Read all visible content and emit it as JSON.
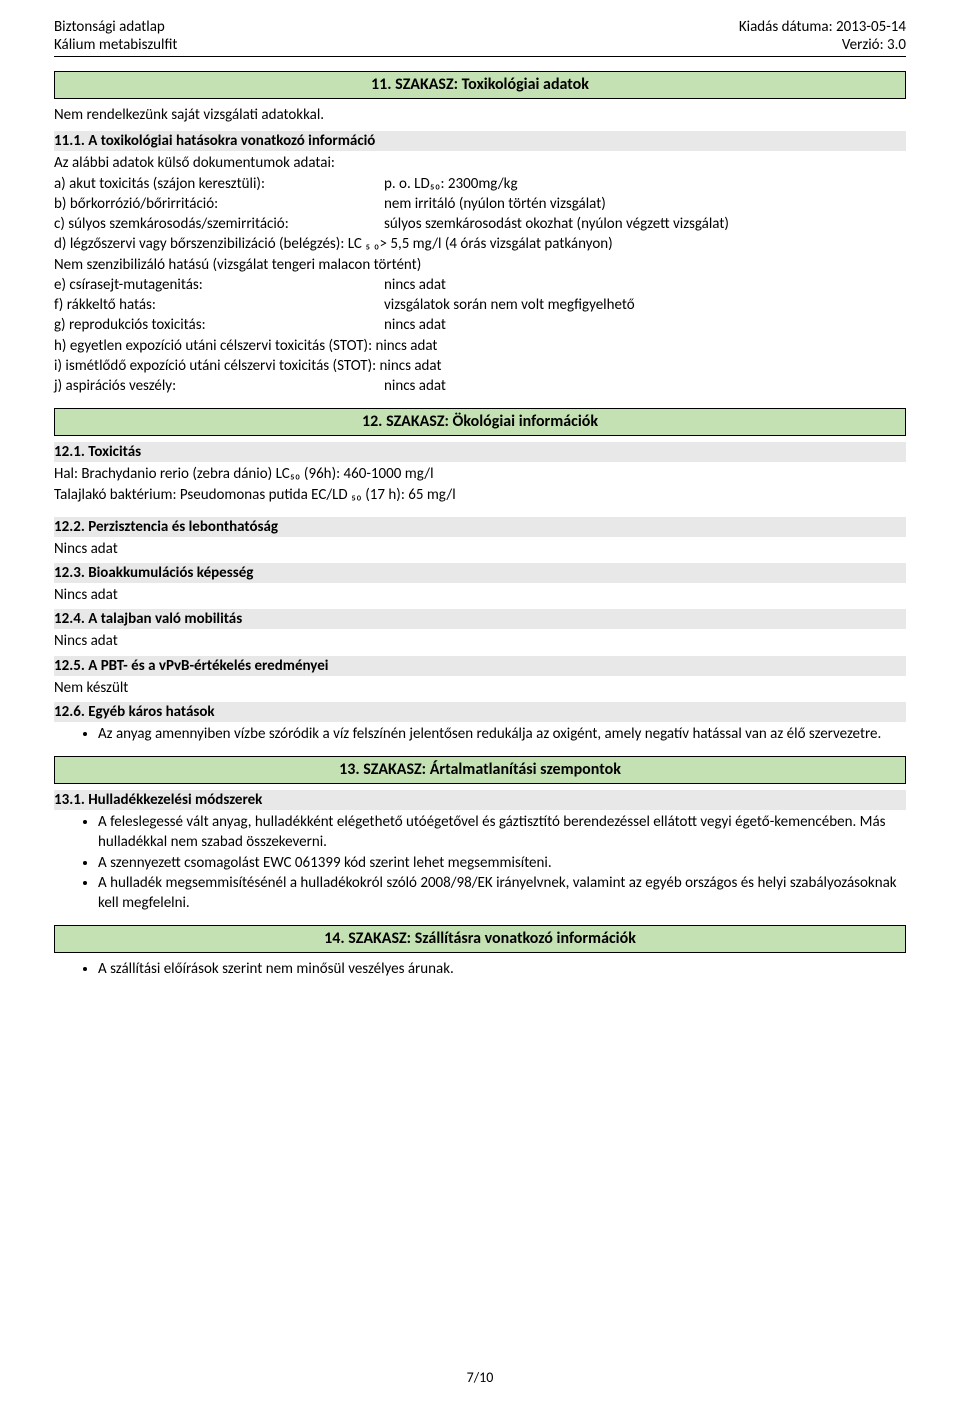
{
  "header": {
    "left1": "Biztonsági adatlap",
    "left2": "Kálium metabiszulfit",
    "right1": "Kiadás dátuma: 2013-05-14",
    "right2": "Verzió: 3.0"
  },
  "section11": {
    "title": "11. SZAKASZ: Toxikológiai adatok",
    "intro": "Nem rendelkezünk saját vizsgálati adatokkal.",
    "sub1_title": "11.1. A toxikológiai hatásokra vonatkozó információ",
    "sub1_line1": "Az alábbi adatok külső dokumentumok adatai:",
    "rows": [
      {
        "k": "a) akut toxicitás (szájon keresztüli):",
        "v": "p. o. LD₅₀: 2300mg/kg"
      },
      {
        "k": "b) bőrkorrózió/bőrirritáció:",
        "v": "nem irritáló (nyúlon történ vizsgálat)"
      },
      {
        "k": "c) súlyos szemkárosodás/szemirritáció:",
        "v": "súlyos szemkárosodást okozhat (nyúlon végzett vizsgálat)"
      }
    ],
    "line_d": "d) légzőszervi vagy bőrszenzibilizáció (belégzés): LC ₅ ₀> 5,5 mg/l (4 órás vizsgálat patkányon)",
    "line_d2": "Nem szenzibilizáló hatású (vizsgálat tengeri malacon történt)",
    "rows2": [
      {
        "k": "e) csírasejt-mutagenitás:",
        "v": "nincs adat"
      },
      {
        "k": "f) rákkeltő hatás:",
        "v": "vizsgálatok során nem volt megfigyelhető"
      },
      {
        "k": "g) reprodukciós toxicitás:",
        "v": "nincs adat"
      }
    ],
    "line_h": "h) egyetlen expozíció utáni célszervi toxicitás (STOT): nincs adat",
    "line_i": "i) ismétlődő expozíció utáni célszervi toxicitás (STOT): nincs adat",
    "rows3": [
      {
        "k": "j) aspirációs veszély:",
        "v": "nincs adat"
      }
    ]
  },
  "section12": {
    "title": "12. SZAKASZ: Ökológiai információk",
    "sub1": "12.1. Toxicitás",
    "sub1_l1": "Hal: Brachydanio rerio (zebra dánio) LC₅₀ (96h): 460-1000 mg/l",
    "sub1_l2": "Talajlakó baktérium: Pseudomonas putida EC/LD ₅₀ (17 h): 65 mg/l",
    "sub2": "12.2. Perzisztencia és lebonthatóság",
    "sub2_v": "Nincs adat",
    "sub3": "12.3. Bioakkumulációs képesség",
    "sub3_v": "Nincs adat",
    "sub4": "12.4. A talajban való mobilitás",
    "sub4_v": "Nincs adat",
    "sub5": "12.5. A PBT- és a vPvB-értékelés eredményei",
    "sub5_v": "Nem készült",
    "sub6": "12.6. Egyéb káros hatások",
    "sub6_bullet": "Az anyag amennyiben vízbe szóródik a víz felszínén jelentősen redukálja az oxigént, amely negatív hatással van az élő szervezetre."
  },
  "section13": {
    "title": "13. SZAKASZ: Ártalmatlanítási szempontok",
    "sub1": "13.1. Hulladékkezelési módszerek",
    "bullets": [
      "A feleslegessé vált anyag, hulladékként elégethető utóégetővel és gáztisztító berendezéssel ellátott vegyi égető-kemencében. Más hulladékkal nem szabad összekeverni.",
      "A szennyezett csomagolást EWC 061399 kód szerint lehet megsemmisíteni.",
      "A hulladék megsemmisítésénél a hulladékokról szóló 2008/98/EK irányelvnek, valamint az egyéb országos és helyi szabályozásoknak kell megfelelni."
    ]
  },
  "section14": {
    "title": "14. SZAKASZ: Szállításra vonatkozó információk",
    "bullet": "A szállítási előírások szerint nem minősül veszélyes árunak."
  },
  "footer": "7/10"
}
